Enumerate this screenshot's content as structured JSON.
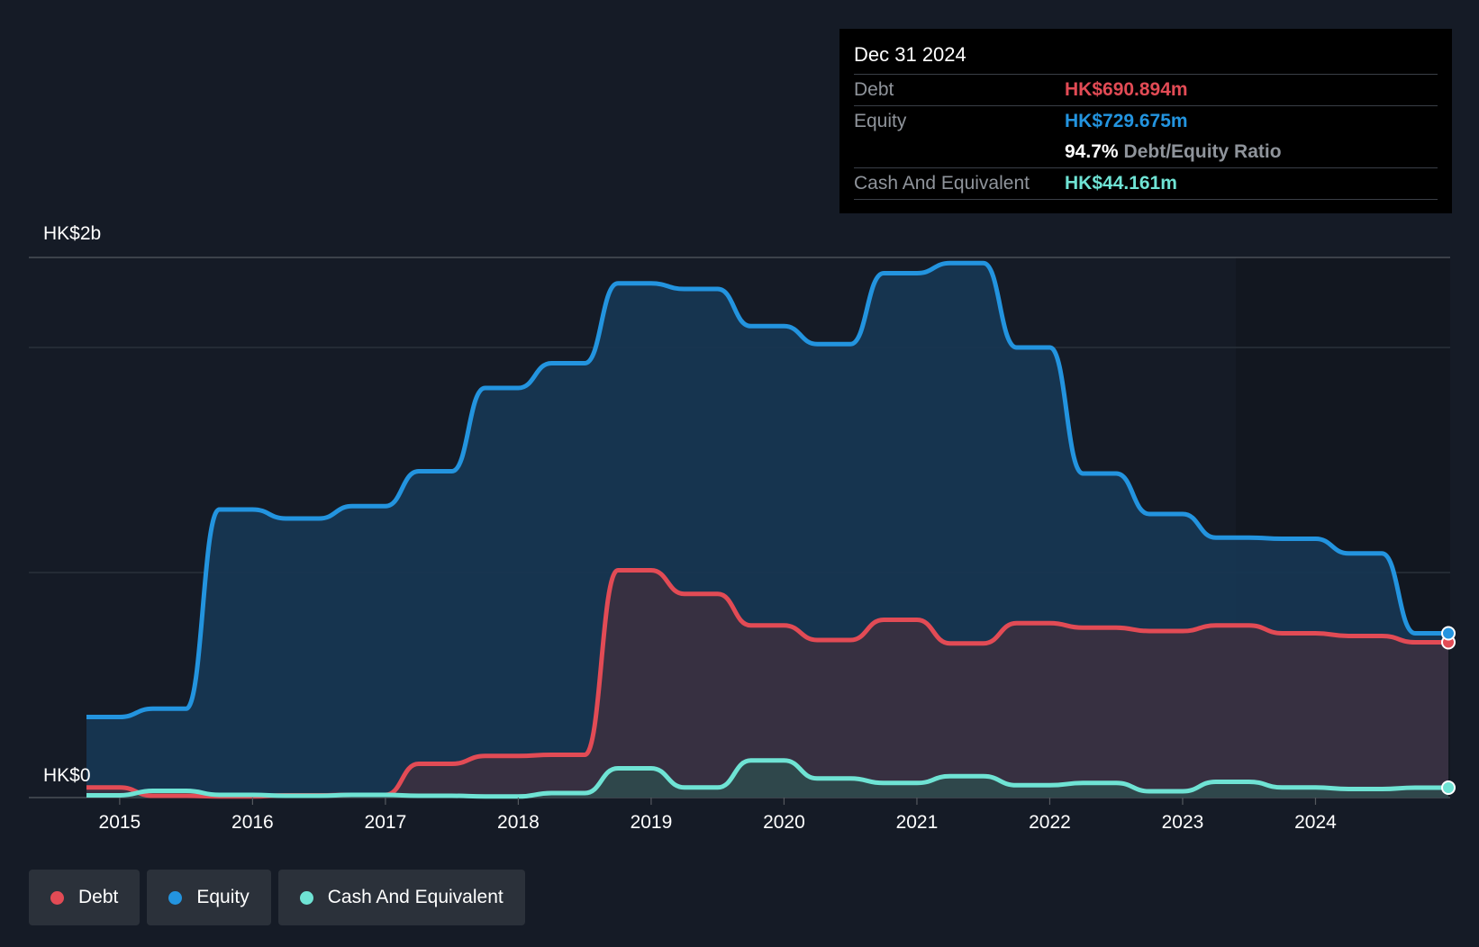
{
  "tooltip": {
    "date": "Dec 31 2024",
    "rows": [
      {
        "label": "Debt",
        "value": "HK$690.894m"
      },
      {
        "label": "Equity",
        "value": "HK$729.675m"
      },
      {
        "ratio_value": "94.7%",
        "ratio_label": "Debt/Equity Ratio"
      },
      {
        "label": "Cash And Equivalent",
        "value": "HK$44.161m"
      }
    ]
  },
  "legend": [
    {
      "label": "Debt",
      "color": "#e24b55"
    },
    {
      "label": "Equity",
      "color": "#2394df"
    },
    {
      "label": "Cash And Equivalent",
      "color": "#6fe3d4"
    }
  ],
  "chart_data": {
    "type": "area",
    "y_top_label": "HK$2b",
    "y_bottom_label": "HK$0",
    "ylim": [
      0,
      2400
    ],
    "xlim": [
      2014.75,
      2025.0
    ],
    "x_ticks": [
      {
        "label": "2015",
        "value": 2015
      },
      {
        "label": "2016",
        "value": 2016
      },
      {
        "label": "2017",
        "value": 2017
      },
      {
        "label": "2018",
        "value": 2018
      },
      {
        "label": "2019",
        "value": 2019
      },
      {
        "label": "2020",
        "value": 2020
      },
      {
        "label": "2021",
        "value": 2021
      },
      {
        "label": "2022",
        "value": 2022
      },
      {
        "label": "2023",
        "value": 2023
      },
      {
        "label": "2024",
        "value": 2024
      }
    ],
    "grid_values": [
      2400,
      2000,
      1000
    ],
    "series": [
      {
        "name": "Equity",
        "color": "#2394df",
        "points": [
          [
            2014.75,
            358
          ],
          [
            2015.0,
            358
          ],
          [
            2015.25,
            395
          ],
          [
            2015.5,
            395
          ],
          [
            2015.75,
            1280
          ],
          [
            2016.0,
            1280
          ],
          [
            2016.25,
            1240
          ],
          [
            2016.5,
            1240
          ],
          [
            2016.75,
            1295
          ],
          [
            2017.0,
            1295
          ],
          [
            2017.25,
            1450
          ],
          [
            2017.5,
            1450
          ],
          [
            2017.75,
            1820
          ],
          [
            2018.0,
            1820
          ],
          [
            2018.25,
            1930
          ],
          [
            2018.5,
            1930
          ],
          [
            2018.75,
            2285
          ],
          [
            2019.0,
            2285
          ],
          [
            2019.25,
            2260
          ],
          [
            2019.5,
            2260
          ],
          [
            2019.75,
            2095
          ],
          [
            2020.0,
            2095
          ],
          [
            2020.25,
            2015
          ],
          [
            2020.5,
            2015
          ],
          [
            2020.75,
            2330
          ],
          [
            2021.0,
            2330
          ],
          [
            2021.25,
            2375
          ],
          [
            2021.5,
            2375
          ],
          [
            2021.75,
            2000
          ],
          [
            2022.0,
            2000
          ],
          [
            2022.25,
            1440
          ],
          [
            2022.5,
            1440
          ],
          [
            2022.75,
            1260
          ],
          [
            2023.0,
            1260
          ],
          [
            2023.25,
            1155
          ],
          [
            2023.5,
            1155
          ],
          [
            2023.75,
            1150
          ],
          [
            2024.0,
            1150
          ],
          [
            2024.25,
            1085
          ],
          [
            2024.5,
            1085
          ],
          [
            2024.75,
            730
          ],
          [
            2025.0,
            730
          ]
        ]
      },
      {
        "name": "Debt",
        "color": "#e24b55",
        "points": [
          [
            2014.75,
            45
          ],
          [
            2015.0,
            45
          ],
          [
            2015.25,
            8
          ],
          [
            2015.5,
            8
          ],
          [
            2015.75,
            5
          ],
          [
            2016.0,
            5
          ],
          [
            2016.25,
            10
          ],
          [
            2016.5,
            10
          ],
          [
            2016.75,
            12
          ],
          [
            2017.0,
            12
          ],
          [
            2017.25,
            150
          ],
          [
            2017.5,
            150
          ],
          [
            2017.75,
            185
          ],
          [
            2018.0,
            185
          ],
          [
            2018.25,
            190
          ],
          [
            2018.5,
            190
          ],
          [
            2018.75,
            1010
          ],
          [
            2019.0,
            1010
          ],
          [
            2019.25,
            905
          ],
          [
            2019.5,
            905
          ],
          [
            2019.75,
            765
          ],
          [
            2020.0,
            765
          ],
          [
            2020.25,
            700
          ],
          [
            2020.5,
            700
          ],
          [
            2020.75,
            790
          ],
          [
            2021.0,
            790
          ],
          [
            2021.25,
            685
          ],
          [
            2021.5,
            685
          ],
          [
            2021.75,
            775
          ],
          [
            2022.0,
            775
          ],
          [
            2022.25,
            755
          ],
          [
            2022.5,
            755
          ],
          [
            2022.75,
            740
          ],
          [
            2023.0,
            740
          ],
          [
            2023.25,
            765
          ],
          [
            2023.5,
            765
          ],
          [
            2023.75,
            730
          ],
          [
            2024.0,
            730
          ],
          [
            2024.25,
            718
          ],
          [
            2024.5,
            718
          ],
          [
            2024.75,
            690
          ],
          [
            2025.0,
            690
          ]
        ]
      },
      {
        "name": "Cash And Equivalent",
        "color": "#6fe3d4",
        "points": [
          [
            2014.75,
            10
          ],
          [
            2015.0,
            10
          ],
          [
            2015.25,
            30
          ],
          [
            2015.5,
            30
          ],
          [
            2015.75,
            12
          ],
          [
            2016.0,
            12
          ],
          [
            2016.25,
            8
          ],
          [
            2016.5,
            8
          ],
          [
            2016.75,
            12
          ],
          [
            2017.0,
            12
          ],
          [
            2017.25,
            8
          ],
          [
            2017.5,
            8
          ],
          [
            2017.75,
            5
          ],
          [
            2018.0,
            5
          ],
          [
            2018.25,
            20
          ],
          [
            2018.5,
            20
          ],
          [
            2018.75,
            130
          ],
          [
            2019.0,
            130
          ],
          [
            2019.25,
            45
          ],
          [
            2019.5,
            45
          ],
          [
            2019.75,
            165
          ],
          [
            2020.0,
            165
          ],
          [
            2020.25,
            85
          ],
          [
            2020.5,
            85
          ],
          [
            2020.75,
            65
          ],
          [
            2021.0,
            65
          ],
          [
            2021.25,
            95
          ],
          [
            2021.5,
            95
          ],
          [
            2021.75,
            55
          ],
          [
            2022.0,
            55
          ],
          [
            2022.25,
            65
          ],
          [
            2022.5,
            65
          ],
          [
            2022.75,
            28
          ],
          [
            2023.0,
            28
          ],
          [
            2023.25,
            70
          ],
          [
            2023.5,
            70
          ],
          [
            2023.75,
            45
          ],
          [
            2024.0,
            45
          ],
          [
            2024.25,
            38
          ],
          [
            2024.5,
            38
          ],
          [
            2024.75,
            44
          ],
          [
            2025.0,
            44
          ]
        ]
      }
    ]
  }
}
